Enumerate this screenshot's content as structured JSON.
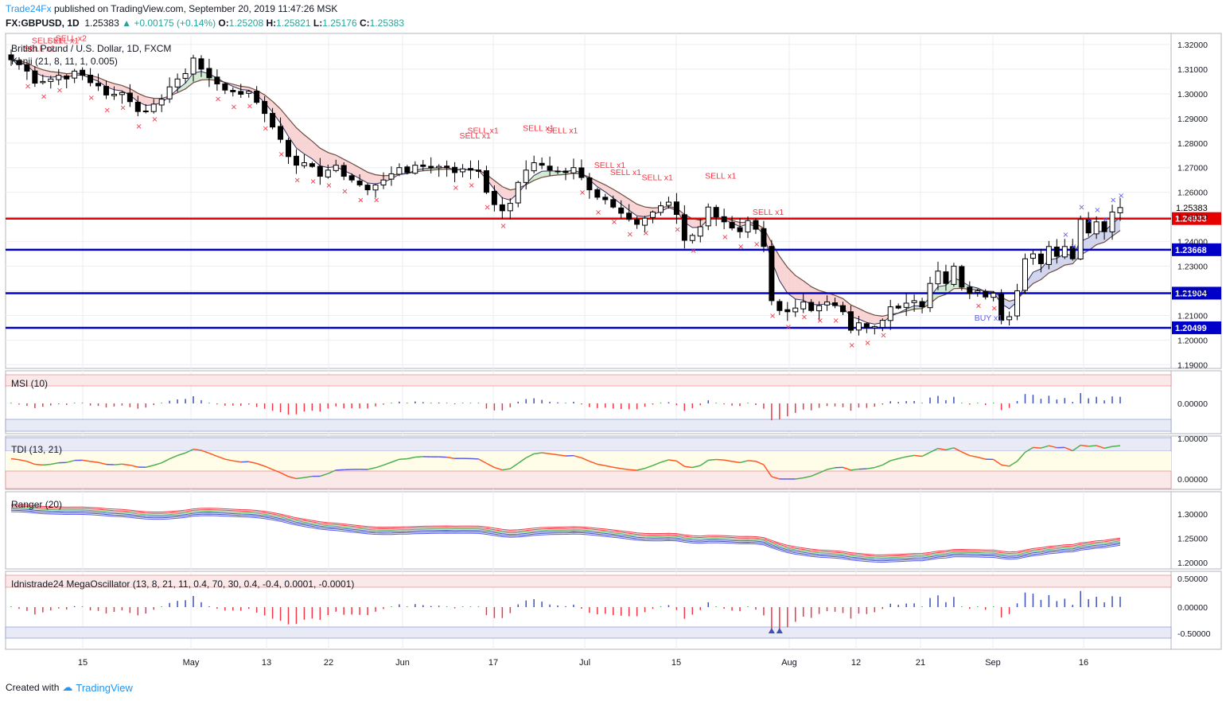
{
  "header": {
    "brand": "Trade24Fx",
    "published_text": "published on TradingView.com, September 20, 2019 11:47:26 MSK",
    "symbol": "FX:GBPUSD, 1D",
    "last": "1.25383",
    "change": "+0.00175 (+0.14%)",
    "ohlc": [
      {
        "label": "O:",
        "value": "1.25208"
      },
      {
        "label": "H:",
        "value": "1.25821"
      },
      {
        "label": "L:",
        "value": "1.25176"
      },
      {
        "label": "C:",
        "value": "1.25383"
      }
    ]
  },
  "footer": {
    "created_with": "Created with",
    "logo_text": "TradingView"
  },
  "colors": {
    "bull_candle": "#ffffff",
    "bear_candle": "#000000",
    "red_line": "#e60000",
    "blue_line": "#0000c8",
    "sell_marker": "#f23645",
    "buy_marker": "#5b5bf0",
    "cloud_bear": "#f7c9c9",
    "cloud_bull": "#c8e6c9"
  },
  "chart_data": [
    {
      "type": "candlestick",
      "title": "British Pound / U.S. Dollar, 1D, FXCM",
      "indicator_label": "Kanji (21, 8, 11, 1, 0.005)",
      "x_tick_labels": [
        "15",
        "May",
        "13",
        "22",
        "Jun",
        "17",
        "Jul",
        "15",
        "Aug",
        "12",
        "21",
        "Sep",
        "16"
      ],
      "y_ticks": [
        "1.32000",
        "1.31000",
        "1.30000",
        "1.29000",
        "1.28000",
        "1.27000",
        "1.26000",
        "1.25000",
        "1.24000",
        "1.23000",
        "1.22000",
        "1.21000",
        "1.20000",
        "1.19000"
      ],
      "ylim": [
        1.1885,
        1.3245
      ],
      "price_label": "1.25383",
      "horizontal_lines": [
        {
          "value": 1.24933,
          "label": "1.24933",
          "color": "red"
        },
        {
          "value": 1.23668,
          "label": "1.23668",
          "color": "blue"
        },
        {
          "value": 1.21904,
          "label": "1.21904",
          "color": "blue"
        },
        {
          "value": 1.20499,
          "label": "1.20499",
          "color": "blue"
        }
      ],
      "signal_labels": [
        "SELL x2",
        "SELL x1",
        "SELL x1",
        "SELL x2",
        "SELL x1",
        "SELL x1",
        "SELL x1",
        "SELL x1",
        "SELL x1",
        "SELL x1",
        "SELL x1",
        "SELL x1",
        "SELL x1",
        "BUY x1"
      ],
      "close": [
        1.3138,
        1.3118,
        1.3092,
        1.3043,
        1.305,
        1.306,
        1.3075,
        1.306,
        1.3092,
        1.3075,
        1.3045,
        1.3032,
        1.2995,
        1.2998,
        1.3005,
        1.2968,
        1.2928,
        1.293,
        1.2958,
        1.2978,
        1.3028,
        1.306,
        1.3082,
        1.3145,
        1.31,
        1.3065,
        1.304,
        1.3015,
        1.3008,
        1.2998,
        1.301,
        1.2965,
        1.292,
        1.2865,
        1.2815,
        1.2745,
        1.271,
        1.272,
        1.2705,
        1.2665,
        1.269,
        1.271,
        1.2665,
        1.265,
        1.263,
        1.261,
        1.263,
        1.265,
        1.2675,
        1.27,
        1.268,
        1.271,
        1.2705,
        1.27,
        1.2705,
        1.27,
        1.268,
        1.2695,
        1.269,
        1.2685,
        1.26,
        1.255,
        1.2525,
        1.2555,
        1.264,
        1.269,
        1.272,
        1.271,
        1.269,
        1.2685,
        1.268,
        1.27,
        1.266,
        1.261,
        1.258,
        1.257,
        1.254,
        1.2515,
        1.249,
        1.247,
        1.2495,
        1.252,
        1.2545,
        1.256,
        1.251,
        1.2405,
        1.2425,
        1.246,
        1.254,
        1.25,
        1.248,
        1.2455,
        1.244,
        1.2485,
        1.245,
        1.238,
        1.216,
        1.212,
        1.2115,
        1.213,
        1.2155,
        1.212,
        1.214,
        1.2155,
        1.214,
        1.2115,
        1.204,
        1.207,
        1.205,
        1.2055,
        1.208,
        1.2135,
        1.213,
        1.215,
        1.216,
        1.2135,
        1.223,
        1.228,
        1.223,
        1.23,
        1.2215,
        1.219,
        1.22,
        1.2175,
        1.219,
        1.208,
        1.2095,
        1.22,
        1.233,
        1.235,
        1.231,
        1.238,
        1.234,
        1.238,
        1.233,
        1.249,
        1.2435,
        1.248,
        1.244,
        1.252,
        1.2538
      ]
    },
    {
      "type": "bar",
      "title": "MSI (10)",
      "y_ticks": [
        "0.00000"
      ]
    },
    {
      "type": "line",
      "title": "TDI (13, 21)",
      "y_ticks": [
        "1.00000",
        "0.00000"
      ]
    },
    {
      "type": "line",
      "title": "Ranger (20)",
      "y_ticks": [
        "1.30000",
        "1.25000",
        "1.20000"
      ]
    },
    {
      "type": "bar",
      "title": "Idnistrade24 MegaOscillator (13, 8, 21, 11, 0.4, 70, 30, 0.4, -0.4, 0.0001, -0.0001)",
      "y_ticks": [
        "0.50000",
        "0.00000",
        "-0.50000"
      ]
    }
  ]
}
